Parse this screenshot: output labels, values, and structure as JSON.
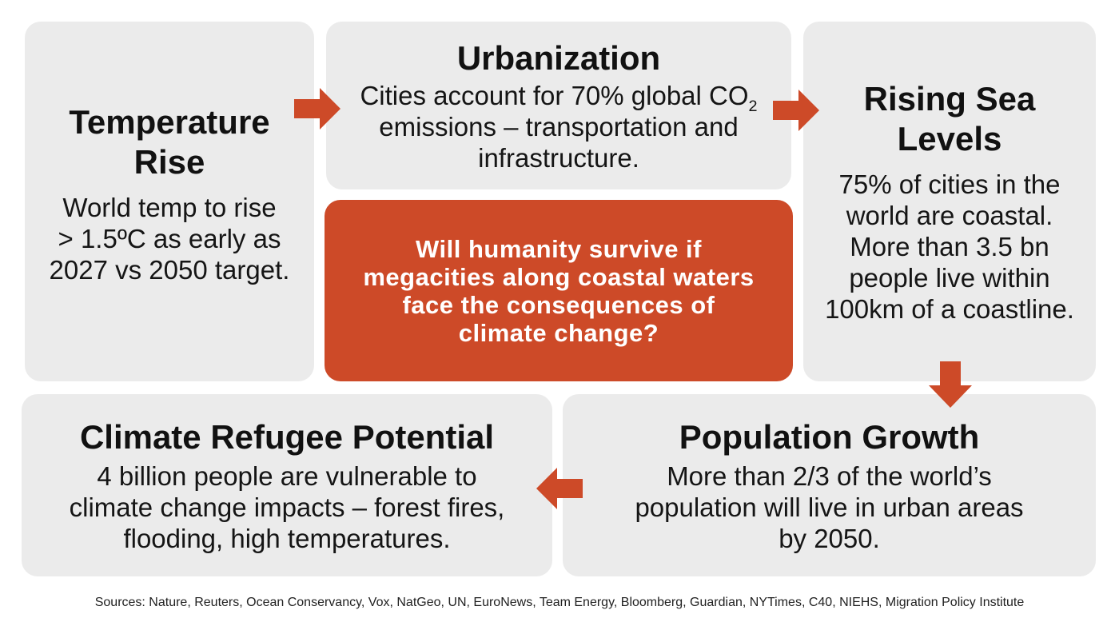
{
  "colors": {
    "accent": "#cd4a28",
    "card": "#ebebeb",
    "text": "#111111"
  },
  "cards": {
    "temperature": {
      "title_line1": "Temperature",
      "title_line2": "Rise",
      "body_line1": "World temp to rise",
      "body_line2": "> 1.5ºC as early as",
      "body_line3": "2027 vs 2050 target."
    },
    "urbanization": {
      "title": "Urbanization",
      "body_line1_text": "Cities account for 70% global CO",
      "body_line1_sub": "2",
      "body_line2": "emissions – transportation and",
      "body_line3": "infrastructure."
    },
    "sea_levels": {
      "title_line1": "Rising Sea",
      "title_line2": "Levels",
      "body_line1": "75% of cities in the",
      "body_line2": "world are coastal.",
      "body_line3": "More than 3.5 bn",
      "body_line4": "people live within",
      "body_line5": "100km of a coastline."
    },
    "refugee": {
      "title": "Climate Refugee Potential",
      "body_line1": "4 billion people are vulnerable to",
      "body_line2": "climate change impacts – forest fires,",
      "body_line3": "flooding, high temperatures."
    },
    "population": {
      "title": "Population Growth",
      "body_line1": "More than 2/3 of the world’s",
      "body_line2": "population will live in urban areas",
      "body_line3": "by 2050."
    }
  },
  "center": {
    "line1": "Will humanity survive if",
    "line2": "megacities along coastal waters",
    "line3": "face the consequences of",
    "line4": "climate change?"
  },
  "arrows": {
    "a1": "arrow-right-icon",
    "a2": "arrow-right-icon",
    "a3": "arrow-down-icon",
    "a4": "arrow-left-icon"
  },
  "sources": "Sources:  Nature, Reuters, Ocean Conservancy, Vox, NatGeo, UN, EuroNews, Team Energy, Bloomberg, Guardian, NYTimes, C40, NIEHS, Migration Policy Institute"
}
